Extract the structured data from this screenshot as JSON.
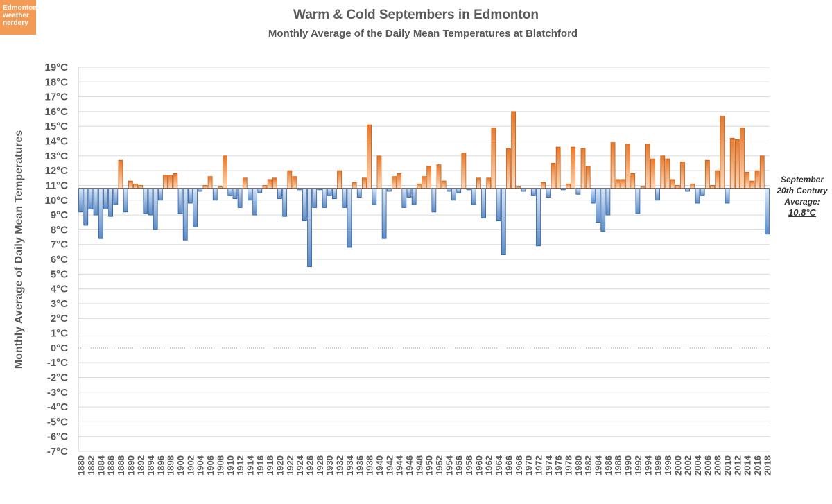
{
  "badge": {
    "lines": [
      "Edmonton",
      "weather",
      "nerdery"
    ]
  },
  "colors": {
    "warm": "#e8782a",
    "cold": "#5b8bc9",
    "grid": "#d9d9d9",
    "text": "#5a5a5a"
  },
  "avg_label": {
    "line1": "September",
    "line2": "20th Century",
    "line3": "Average:",
    "value": "10.8°C"
  },
  "chart_data": {
    "type": "bar",
    "title": "Warm & Cold Septembers in Edmonton",
    "subtitle": "Monthly Average of the Daily Mean Temperatures at Blatchford",
    "ylabel": "Monthly Average of Daily Mean Temperatures",
    "xlabel": "",
    "baseline": 10.8,
    "ylim": [
      -7,
      19
    ],
    "y_ticks": [
      "19°C",
      "18°C",
      "17°C",
      "16°C",
      "15°C",
      "14°C",
      "13°C",
      "12°C",
      "11°C",
      "10°C",
      "9°C",
      "8°C",
      "7°C",
      "6°C",
      "5°C",
      "4°C",
      "3°C",
      "2°C",
      "1°C",
      "0°C",
      "-1°C",
      "-2°C",
      "-3°C",
      "-4°C",
      "-5°C",
      "-6°C",
      "-7°C"
    ],
    "x_tick_labels": [
      "1880",
      "1882",
      "1884",
      "1886",
      "1888",
      "1890",
      "1892",
      "1894",
      "1896",
      "1898",
      "1900",
      "1902",
      "1904",
      "1906",
      "1908",
      "1910",
      "1912",
      "1914",
      "1916",
      "1918",
      "1920",
      "1922",
      "1924",
      "1926",
      "1928",
      "1930",
      "1932",
      "1934",
      "1936",
      "1938",
      "1940",
      "1942",
      "1944",
      "1946",
      "1948",
      "1950",
      "1952",
      "1954",
      "1956",
      "1958",
      "1960",
      "1962",
      "1964",
      "1966",
      "1968",
      "1970",
      "1972",
      "1974",
      "1976",
      "1978",
      "1980",
      "1982",
      "1984",
      "1986",
      "1988",
      "1990",
      "1992",
      "1994",
      "1996",
      "1998",
      "2000",
      "2002",
      "2004",
      "2006",
      "2008",
      "2010",
      "2012",
      "2014",
      "2016",
      "2018"
    ],
    "year_start": 1880,
    "values": [
      9.2,
      8.3,
      9.4,
      9.0,
      7.4,
      9.4,
      8.9,
      9.7,
      12.7,
      9.2,
      11.3,
      11.1,
      11.0,
      9.1,
      9.0,
      8.0,
      10.0,
      11.7,
      11.7,
      11.8,
      9.1,
      7.3,
      9.8,
      8.2,
      10.6,
      11.0,
      11.6,
      10.0,
      10.9,
      13.0,
      10.3,
      10.1,
      9.5,
      11.5,
      10.0,
      9.0,
      10.5,
      11.0,
      11.4,
      11.5,
      10.1,
      8.9,
      12.0,
      11.6,
      10.7,
      8.6,
      5.5,
      9.5,
      10.7,
      9.5,
      10.3,
      10.1,
      12.0,
      9.5,
      6.8,
      11.2,
      10.2,
      11.5,
      15.1,
      9.7,
      13.0,
      7.4,
      10.6,
      11.6,
      11.8,
      9.5,
      10.2,
      9.7,
      11.1,
      11.6,
      12.3,
      9.2,
      12.4,
      11.3,
      10.6,
      10.0,
      10.5,
      13.2,
      10.7,
      9.7,
      11.5,
      8.8,
      11.5,
      14.9,
      8.6,
      6.3,
      13.5,
      16.0,
      10.9,
      10.6,
      10.8,
      10.3,
      6.9,
      11.2,
      10.2,
      12.5,
      13.6,
      10.7,
      11.1,
      13.6,
      10.4,
      13.5,
      12.3,
      9.8,
      8.5,
      7.9,
      9.0,
      13.9,
      11.4,
      11.4,
      13.8,
      11.8,
      9.1,
      10.9,
      13.8,
      12.8,
      10.0,
      13.0,
      12.8,
      11.4,
      11.0,
      12.6,
      10.6,
      11.1,
      9.8,
      10.3,
      12.7,
      11.0,
      12.0,
      15.7,
      9.8,
      14.2,
      14.1,
      14.9,
      11.9,
      11.3,
      12.0,
      13.0,
      7.7
    ]
  }
}
